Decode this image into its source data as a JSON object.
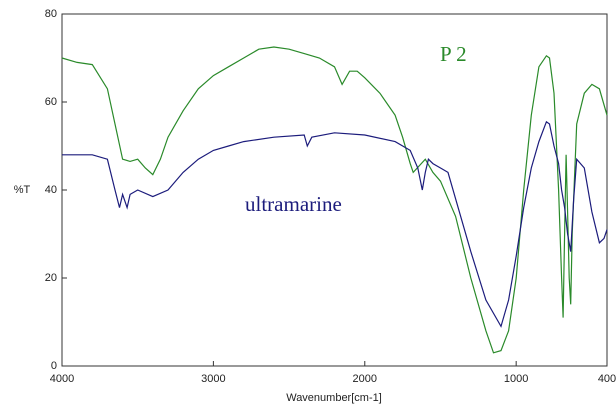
{
  "chart_data": {
    "type": "line",
    "xlabel": "Wavenumber[cm-1]",
    "ylabel": "%T",
    "xlim": [
      4000,
      400
    ],
    "xticks": [
      4000,
      3000,
      2000,
      1000,
      400
    ],
    "ylim": [
      0,
      80
    ],
    "yticks": [
      0,
      20,
      40,
      60,
      80
    ],
    "series": [
      {
        "name": "P 2",
        "color": "#2a8a2a",
        "x": [
          4000,
          3900,
          3800,
          3700,
          3650,
          3600,
          3550,
          3500,
          3450,
          3400,
          3350,
          3300,
          3200,
          3100,
          3000,
          2900,
          2800,
          2700,
          2600,
          2500,
          2400,
          2300,
          2200,
          2150,
          2100,
          2050,
          2000,
          1900,
          1800,
          1750,
          1700,
          1680,
          1600,
          1550,
          1500,
          1400,
          1300,
          1200,
          1150,
          1100,
          1050,
          1000,
          950,
          900,
          850,
          800,
          780,
          750,
          720,
          700,
          690,
          680,
          670,
          660,
          650,
          640,
          630,
          600,
          550,
          500,
          450,
          400
        ],
        "values": [
          70,
          69,
          68.5,
          63,
          55,
          47,
          46.5,
          47,
          45,
          43.5,
          47,
          52,
          58,
          63,
          66,
          68,
          70,
          72,
          72.5,
          72,
          71,
          70,
          68,
          64,
          67,
          67,
          65.5,
          62,
          57,
          52,
          46,
          44,
          47,
          44,
          42,
          34,
          20,
          8,
          3,
          3.5,
          8,
          20,
          40,
          57,
          68,
          70.5,
          70,
          62,
          40,
          20,
          11,
          30,
          48,
          35,
          20,
          14,
          30,
          55,
          62,
          64,
          63,
          57
        ]
      },
      {
        "name": "ultramarine",
        "color": "#1c1c7c",
        "x": [
          4000,
          3800,
          3700,
          3650,
          3620,
          3600,
          3570,
          3550,
          3500,
          3400,
          3300,
          3200,
          3100,
          3000,
          2900,
          2800,
          2600,
          2400,
          2380,
          2350,
          2200,
          2000,
          1800,
          1700,
          1650,
          1620,
          1600,
          1580,
          1550,
          1500,
          1450,
          1400,
          1300,
          1200,
          1100,
          1050,
          1000,
          950,
          900,
          850,
          800,
          780,
          750,
          720,
          700,
          680,
          660,
          640,
          620,
          600,
          550,
          500,
          450,
          420,
          400
        ],
        "values": [
          48,
          48,
          47,
          40,
          36,
          39,
          36,
          39,
          40,
          38.5,
          40,
          44,
          47,
          49,
          50,
          51,
          52,
          52.5,
          50,
          52,
          53,
          52.5,
          51,
          49,
          45,
          40,
          44,
          47,
          46,
          45,
          44,
          38,
          26,
          15,
          9,
          15,
          25,
          36,
          45,
          51,
          55.5,
          55,
          50,
          46,
          40,
          36,
          30,
          26,
          38,
          47,
          45,
          35,
          28,
          29,
          31
        ]
      }
    ]
  }
}
